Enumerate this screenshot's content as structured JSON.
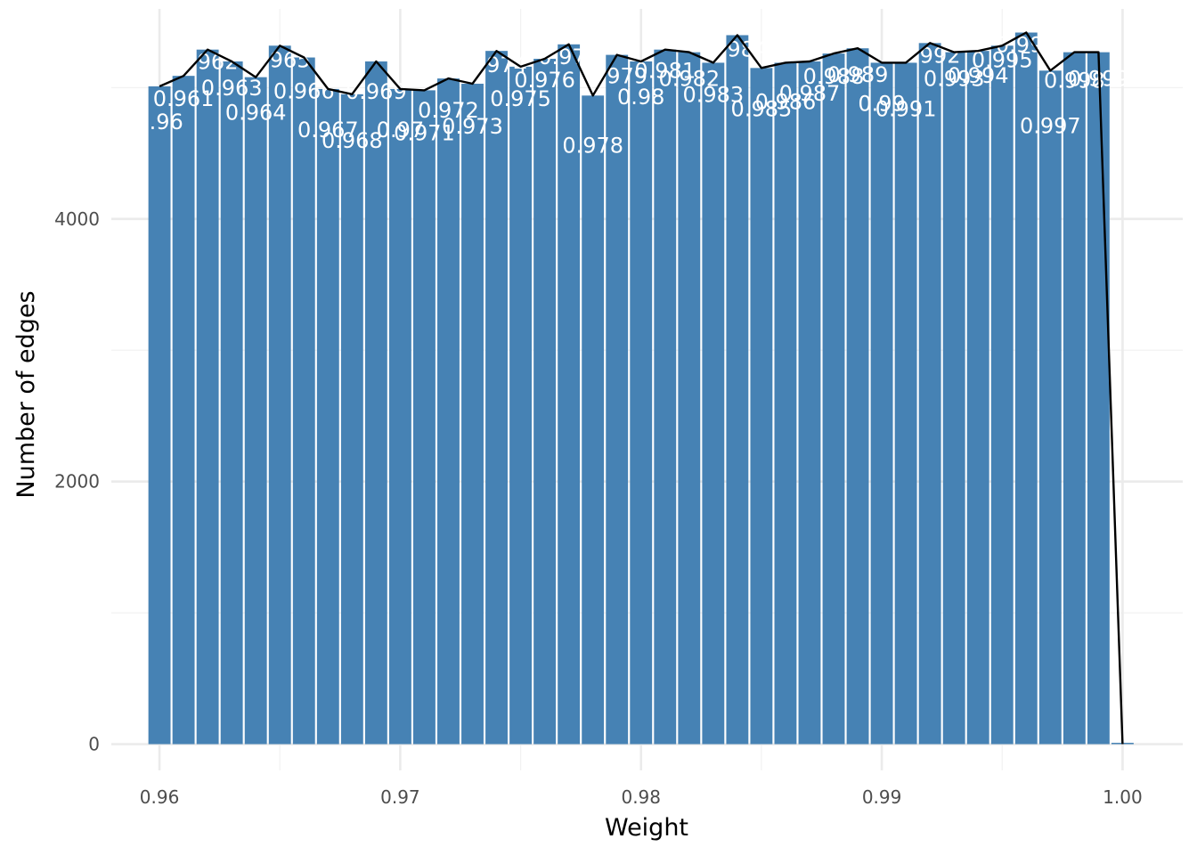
{
  "chart_data": {
    "type": "bar",
    "title": "",
    "xlabel": "Weight",
    "ylabel": "Number of edges",
    "xlim": [
      0.958,
      1.0025
    ],
    "ylim": [
      -200,
      5600
    ],
    "x_ticks": [
      "0.96",
      "0.97",
      "0.98",
      "0.99",
      "1.00"
    ],
    "x_tick_values": [
      0.96,
      0.97,
      0.98,
      0.99,
      1.0
    ],
    "y_ticks": [
      "0",
      "2000",
      "4000"
    ],
    "y_tick_values": [
      0,
      2000,
      4000
    ],
    "grid": true,
    "bar_color": "#4682b4",
    "line_color": "#000000",
    "x": [
      0.96,
      0.961,
      0.962,
      0.963,
      0.964,
      0.965,
      0.966,
      0.967,
      0.968,
      0.969,
      0.97,
      0.971,
      0.972,
      0.973,
      0.974,
      0.975,
      0.976,
      0.977,
      0.978,
      0.979,
      0.98,
      0.981,
      0.982,
      0.983,
      0.984,
      0.985,
      0.986,
      0.987,
      0.988,
      0.989,
      0.99,
      0.991,
      0.992,
      0.993,
      0.994,
      0.995,
      0.996,
      0.997,
      0.998,
      0.999,
      1.0
    ],
    "values": [
      5010,
      5090,
      5290,
      5200,
      5080,
      5320,
      5230,
      4990,
      4950,
      5200,
      4990,
      4980,
      5070,
      5030,
      5280,
      5160,
      5220,
      5330,
      4940,
      5250,
      5200,
      5290,
      5270,
      5190,
      5400,
      5150,
      5190,
      5200,
      5260,
      5300,
      5190,
      5190,
      5340,
      5270,
      5280,
      5320,
      5420,
      5130,
      5270,
      5270,
      0
    ],
    "data_labels": [
      "0.96",
      "0.961",
      "0.962",
      "0.963",
      "0.964",
      "0.965",
      "0.966",
      "0.967",
      "0.968",
      "0.969",
      "0.97",
      "0.971",
      "0.972",
      "0.973",
      "0.974",
      "0.975",
      "0.976",
      "0.977",
      "0.978",
      "0.979",
      "0.98",
      "0.981",
      "0.982",
      "0.983",
      "0.984",
      "0.985",
      "0.986",
      "0.987",
      "0.988",
      "0.989",
      "0.99",
      "0.991",
      "0.992",
      "0.993",
      "0.994",
      "0.995",
      "0.996",
      "0.997",
      "0.998",
      "0.999",
      ""
    ]
  }
}
